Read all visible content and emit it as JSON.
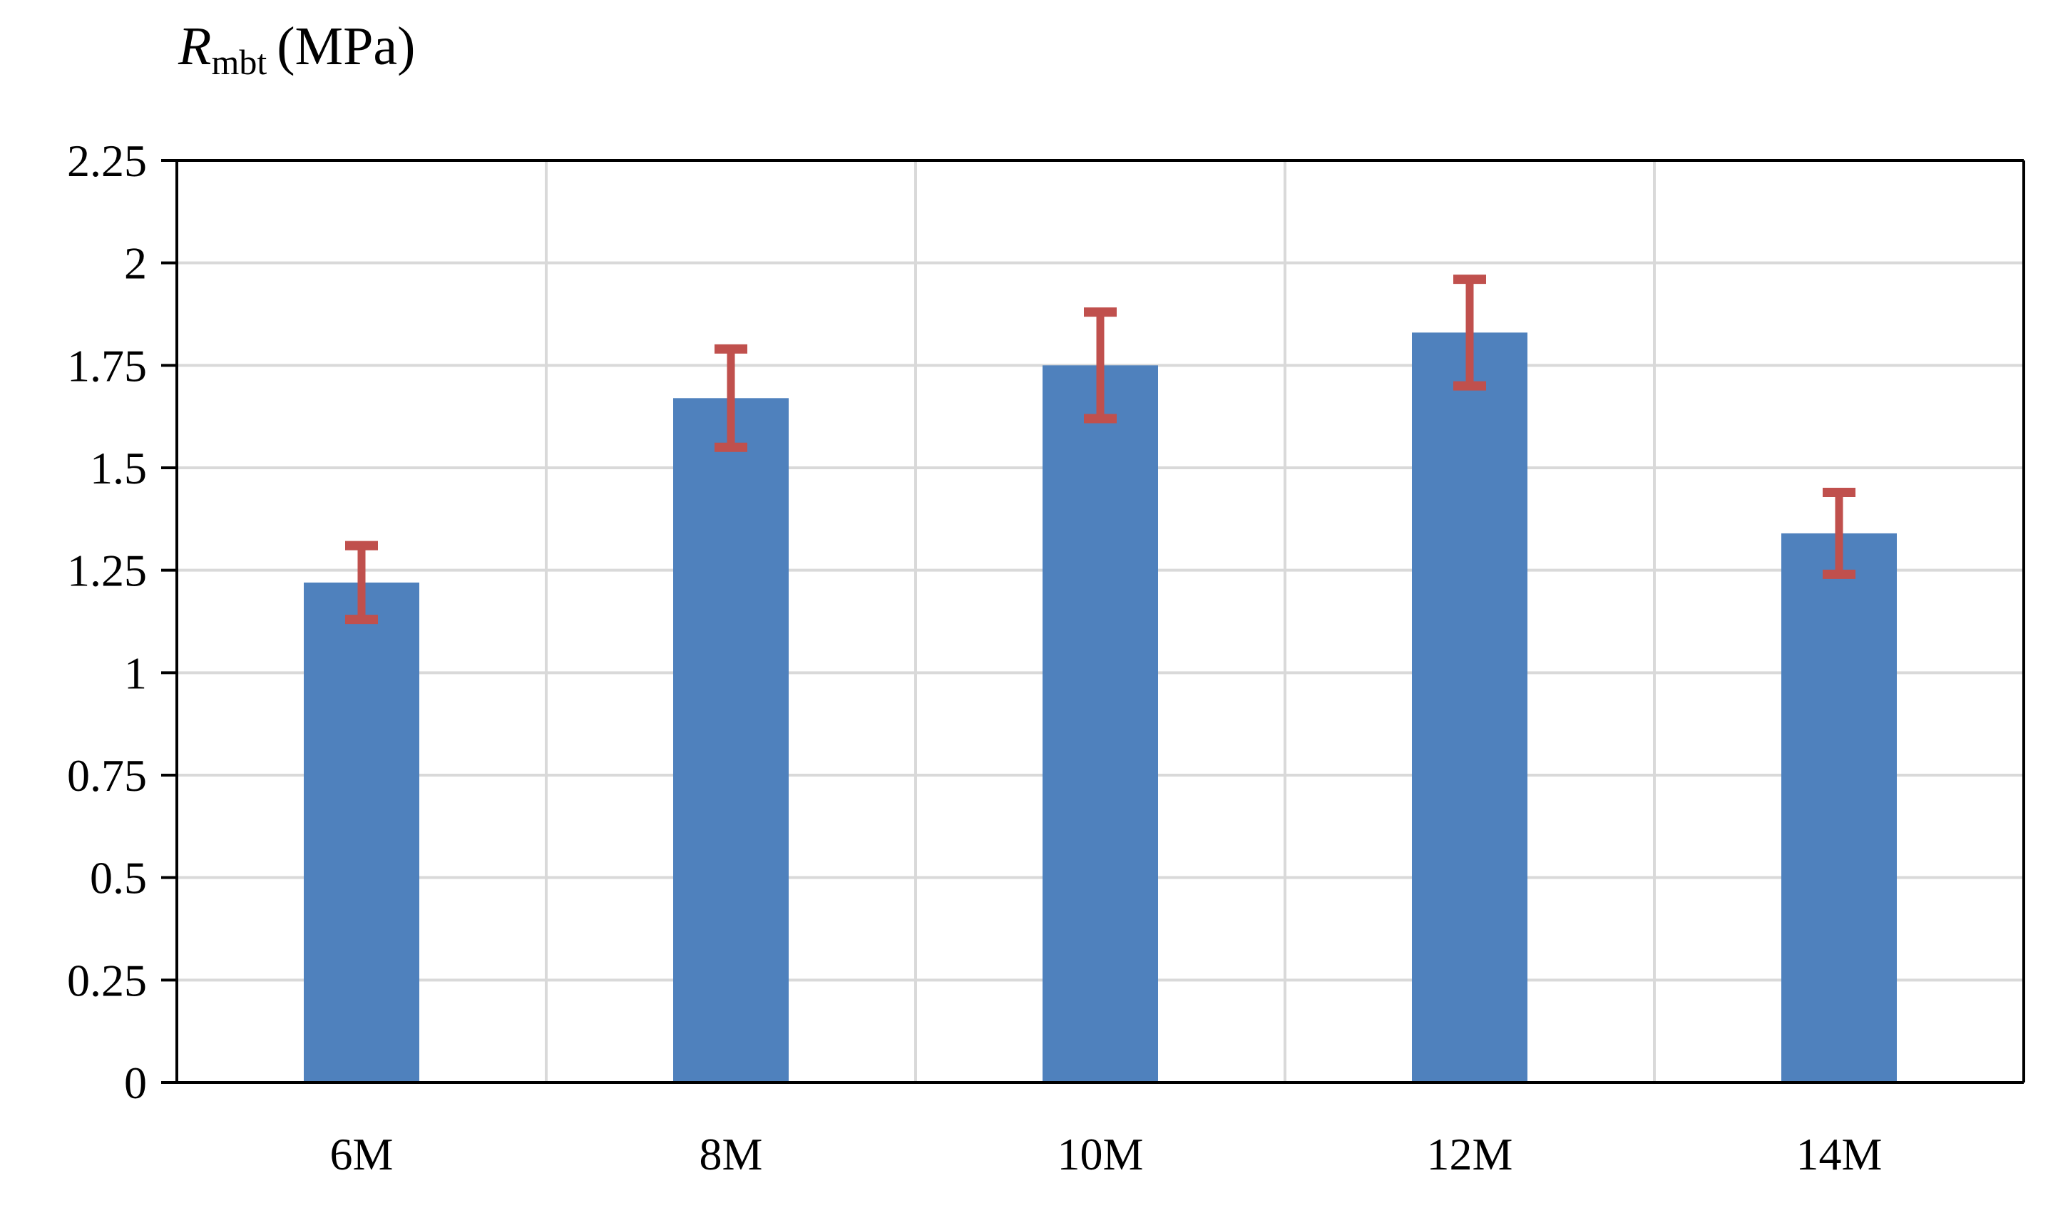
{
  "chart_data": {
    "type": "bar",
    "title": "",
    "xlabel": "",
    "ylabel": {
      "symbol": "R",
      "subscript": "mbt",
      "unit": "(MPa)"
    },
    "categories": [
      "6M",
      "8M",
      "10M",
      "12M",
      "14M"
    ],
    "series": [
      {
        "values": [
          1.22,
          1.67,
          1.75,
          1.83,
          1.34
        ],
        "error": [
          0.09,
          0.12,
          0.13,
          0.13,
          0.1
        ],
        "color": "#4F81BD"
      }
    ],
    "error_bar_color": "#C0504D",
    "ylim": [
      0,
      2.25
    ],
    "yticks": [
      0,
      0.25,
      0.5,
      0.75,
      1,
      1.25,
      1.5,
      1.75,
      2,
      2.25
    ],
    "ytick_labels": [
      "0",
      "0.25",
      "0.5",
      "0.75",
      "1",
      "1.25",
      "1.5",
      "1.75",
      "2",
      "2.25"
    ],
    "grid": true,
    "legend": "none"
  }
}
